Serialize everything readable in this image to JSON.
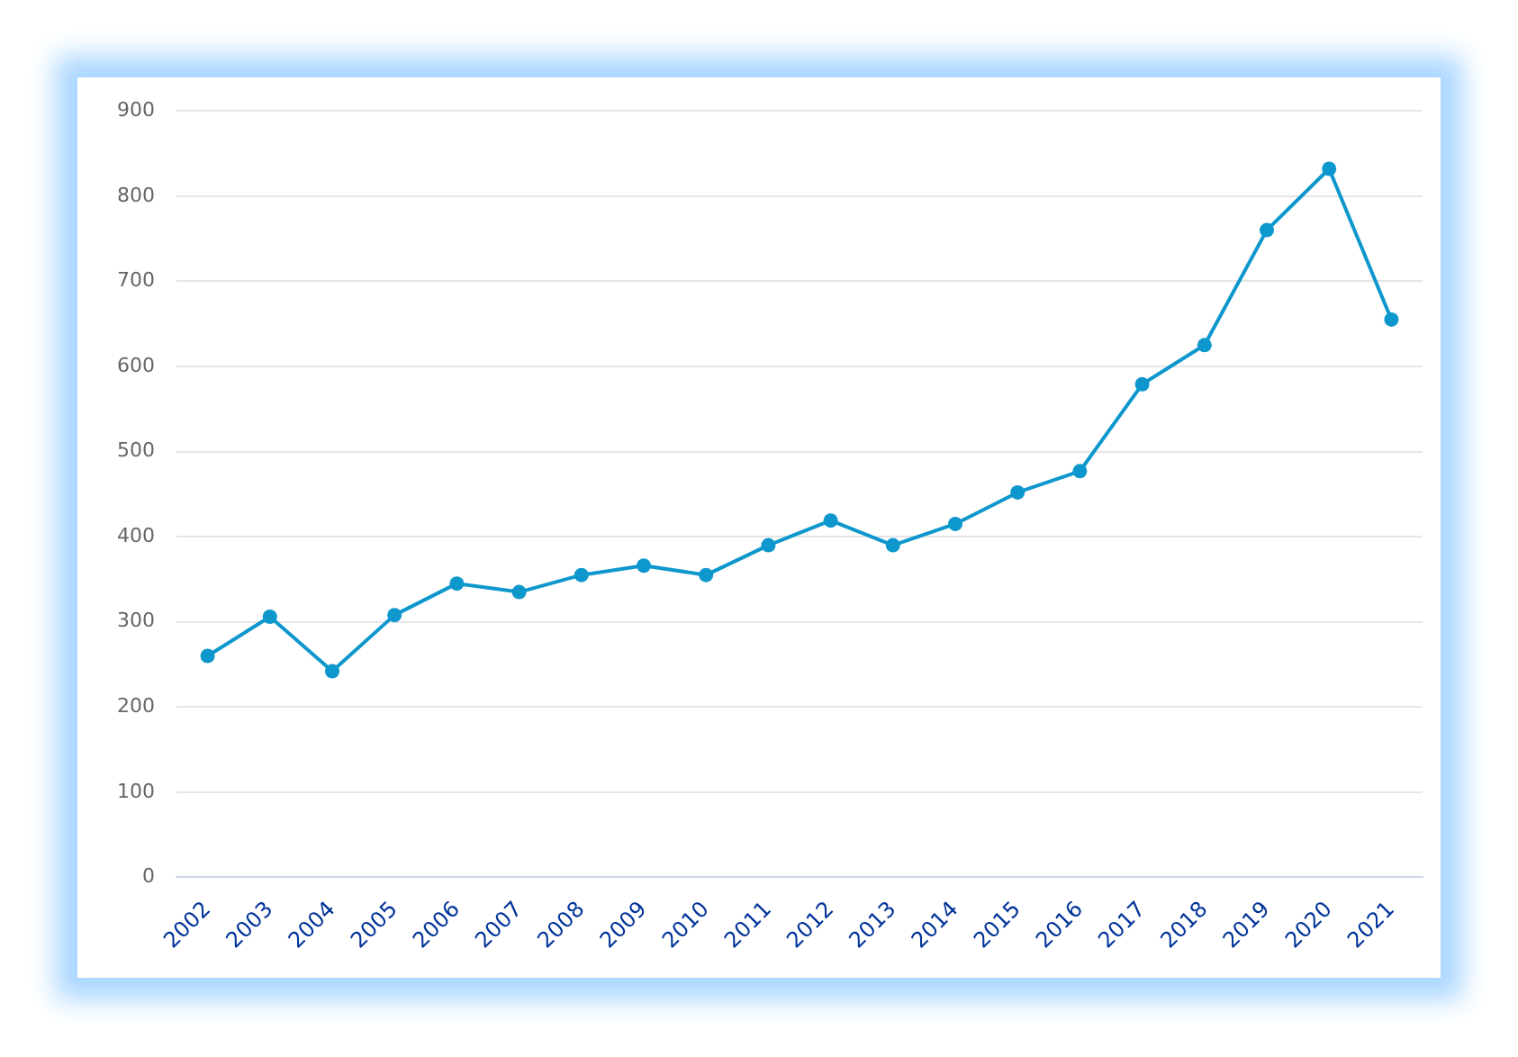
{
  "chart_data": {
    "type": "line",
    "categories": [
      "2002",
      "2003",
      "2004",
      "2005",
      "2006",
      "2007",
      "2008",
      "2009",
      "2010",
      "2011",
      "2012",
      "2013",
      "2014",
      "2015",
      "2016",
      "2017",
      "2018",
      "2019",
      "2020",
      "2021"
    ],
    "series": [
      {
        "color": "#0e97cc",
        "values": [
          260,
          306,
          242,
          308,
          345,
          335,
          355,
          366,
          355,
          390,
          419,
          390,
          415,
          452,
          477,
          579,
          625,
          760,
          832,
          655
        ]
      }
    ],
    "ylim": [
      0,
      900
    ],
    "yticks": [
      0,
      100,
      200,
      300,
      400,
      500,
      600,
      700,
      800,
      900
    ],
    "grid": "y",
    "marker": "circle",
    "line_style": "solid",
    "legend": false
  }
}
